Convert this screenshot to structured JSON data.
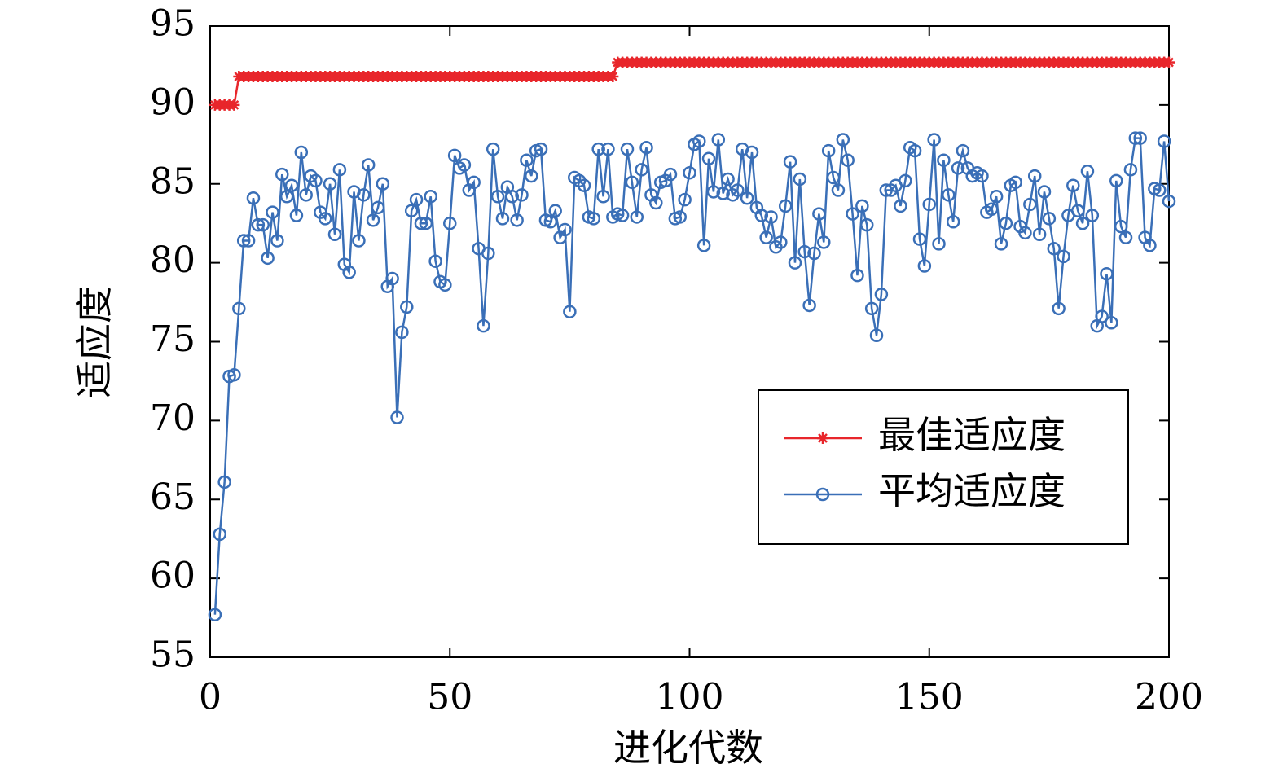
{
  "chart_data": {
    "type": "line",
    "x_label": "进化代数",
    "y_label": "适应度",
    "x": [
      1,
      2,
      3,
      4,
      5,
      6,
      7,
      8,
      9,
      10,
      11,
      12,
      13,
      14,
      15,
      16,
      17,
      18,
      19,
      20,
      21,
      22,
      23,
      24,
      25,
      26,
      27,
      28,
      29,
      30,
      31,
      32,
      33,
      34,
      35,
      36,
      37,
      38,
      39,
      40,
      41,
      42,
      43,
      44,
      45,
      46,
      47,
      48,
      49,
      50,
      51,
      52,
      53,
      54,
      55,
      56,
      57,
      58,
      59,
      60,
      61,
      62,
      63,
      64,
      65,
      66,
      67,
      68,
      69,
      70,
      71,
      72,
      73,
      74,
      75,
      76,
      77,
      78,
      79,
      80,
      81,
      82,
      83,
      84,
      85,
      86,
      87,
      88,
      89,
      90,
      91,
      92,
      93,
      94,
      95,
      96,
      97,
      98,
      99,
      100,
      101,
      102,
      103,
      104,
      105,
      106,
      107,
      108,
      109,
      110,
      111,
      112,
      113,
      114,
      115,
      116,
      117,
      118,
      119,
      120,
      121,
      122,
      123,
      124,
      125,
      126,
      127,
      128,
      129,
      130,
      131,
      132,
      133,
      134,
      135,
      136,
      137,
      138,
      139,
      140,
      141,
      142,
      143,
      144,
      145,
      146,
      147,
      148,
      149,
      150,
      151,
      152,
      153,
      154,
      155,
      156,
      157,
      158,
      159,
      160,
      161,
      162,
      163,
      164,
      165,
      166,
      167,
      168,
      169,
      170,
      171,
      172,
      173,
      174,
      175,
      176,
      177,
      178,
      179,
      180,
      181,
      182,
      183,
      184,
      185,
      186,
      187,
      188,
      189,
      190,
      191,
      192,
      193,
      194,
      195,
      196,
      197,
      198,
      199,
      200
    ],
    "series": [
      {
        "name": "最佳适应度",
        "color": "#e8262b",
        "marker": "star",
        "values": [
          90,
          90,
          90,
          90,
          90,
          91.8,
          91.8,
          91.8,
          91.8,
          91.8,
          91.8,
          91.8,
          91.8,
          91.8,
          91.8,
          91.8,
          91.8,
          91.8,
          91.8,
          91.8,
          91.8,
          91.8,
          91.8,
          91.8,
          91.8,
          91.8,
          91.8,
          91.8,
          91.8,
          91.8,
          91.8,
          91.8,
          91.8,
          91.8,
          91.8,
          91.8,
          91.8,
          91.8,
          91.8,
          91.8,
          91.8,
          91.8,
          91.8,
          91.8,
          91.8,
          91.8,
          91.8,
          91.8,
          91.8,
          91.8,
          91.8,
          91.8,
          91.8,
          91.8,
          91.8,
          91.8,
          91.8,
          91.8,
          91.8,
          91.8,
          91.8,
          91.8,
          91.8,
          91.8,
          91.8,
          91.8,
          91.8,
          91.8,
          91.8,
          91.8,
          91.8,
          91.8,
          91.8,
          91.8,
          91.8,
          91.8,
          91.8,
          91.8,
          91.8,
          91.8,
          91.8,
          91.8,
          91.8,
          91.8,
          92.7,
          92.7,
          92.7,
          92.7,
          92.7,
          92.7,
          92.7,
          92.7,
          92.7,
          92.7,
          92.7,
          92.7,
          92.7,
          92.7,
          92.7,
          92.7,
          92.7,
          92.7,
          92.7,
          92.7,
          92.7,
          92.7,
          92.7,
          92.7,
          92.7,
          92.7,
          92.7,
          92.7,
          92.7,
          92.7,
          92.7,
          92.7,
          92.7,
          92.7,
          92.7,
          92.7,
          92.7,
          92.7,
          92.7,
          92.7,
          92.7,
          92.7,
          92.7,
          92.7,
          92.7,
          92.7,
          92.7,
          92.7,
          92.7,
          92.7,
          92.7,
          92.7,
          92.7,
          92.7,
          92.7,
          92.7,
          92.7,
          92.7,
          92.7,
          92.7,
          92.7,
          92.7,
          92.7,
          92.7,
          92.7,
          92.7,
          92.7,
          92.7,
          92.7,
          92.7,
          92.7,
          92.7,
          92.7,
          92.7,
          92.7,
          92.7,
          92.7,
          92.7,
          92.7,
          92.7,
          92.7,
          92.7,
          92.7,
          92.7,
          92.7,
          92.7,
          92.7,
          92.7,
          92.7,
          92.7,
          92.7,
          92.7,
          92.7,
          92.7,
          92.7,
          92.7,
          92.7,
          92.7,
          92.7,
          92.7,
          92.7,
          92.7,
          92.7,
          92.7,
          92.7,
          92.7,
          92.7,
          92.7,
          92.7,
          92.7,
          92.7,
          92.7,
          92.7,
          92.7,
          92.7,
          92.7
        ]
      },
      {
        "name": "平均适应度",
        "color": "#3a6fb7",
        "marker": "circle",
        "values": [
          57.7,
          62.8,
          66.1,
          72.8,
          72.9,
          77.1,
          81.4,
          81.4,
          84.1,
          82.4,
          82.4,
          80.3,
          83.2,
          81.4,
          85.6,
          84.2,
          84.9,
          83.0,
          87.0,
          84.3,
          85.5,
          85.2,
          83.2,
          82.8,
          85.0,
          81.8,
          85.9,
          79.9,
          79.4,
          84.5,
          81.4,
          84.3,
          86.2,
          82.7,
          83.5,
          85.0,
          78.5,
          79.0,
          70.2,
          75.6,
          77.2,
          83.3,
          84.0,
          82.5,
          82.5,
          84.2,
          80.1,
          78.8,
          78.6,
          82.5,
          86.8,
          86.0,
          86.2,
          84.6,
          85.1,
          80.9,
          76.0,
          80.6,
          87.2,
          84.2,
          82.8,
          84.8,
          84.2,
          82.7,
          84.3,
          86.5,
          85.5,
          87.1,
          87.2,
          82.7,
          82.6,
          83.3,
          81.6,
          82.1,
          76.9,
          85.4,
          85.2,
          84.9,
          82.9,
          82.8,
          87.2,
          84.2,
          87.2,
          82.9,
          83.1,
          83.0,
          87.2,
          85.1,
          82.9,
          85.9,
          87.3,
          84.3,
          83.8,
          85.1,
          85.2,
          85.6,
          82.8,
          82.9,
          84.0,
          85.7,
          87.5,
          87.7,
          81.1,
          86.6,
          84.5,
          87.8,
          84.4,
          85.3,
          84.3,
          84.6,
          87.2,
          84.1,
          87.0,
          83.5,
          83.0,
          81.6,
          82.9,
          81.0,
          81.3,
          83.6,
          86.4,
          80.0,
          85.3,
          80.7,
          77.3,
          80.6,
          83.1,
          81.3,
          87.1,
          85.4,
          84.6,
          87.8,
          86.5,
          83.1,
          79.2,
          83.6,
          82.4,
          77.1,
          75.4,
          78.0,
          84.6,
          84.6,
          84.9,
          83.6,
          85.2,
          87.3,
          87.1,
          81.5,
          79.8,
          83.7,
          87.8,
          81.2,
          86.5,
          84.3,
          82.6,
          86.0,
          87.1,
          86.0,
          85.5,
          85.7,
          85.5,
          83.2,
          83.4,
          84.2,
          81.2,
          82.5,
          84.9,
          85.1,
          82.3,
          81.9,
          83.7,
          85.5,
          81.8,
          84.5,
          82.8,
          80.9,
          77.1,
          80.4,
          83.0,
          84.9,
          83.3,
          82.5,
          85.8,
          83.0,
          76.0,
          76.6,
          79.3,
          76.2,
          85.2,
          82.3,
          81.6,
          85.9,
          87.9,
          87.9,
          81.6,
          81.1,
          84.7,
          84.6,
          87.7,
          83.9
        ]
      }
    ],
    "xlim": [
      0,
      200
    ],
    "xticks": [
      0,
      50,
      100,
      150,
      200
    ],
    "ylim": [
      55,
      95
    ],
    "yticks": [
      55,
      60,
      65,
      70,
      75,
      80,
      85,
      90,
      95
    ],
    "legend": "lower right"
  }
}
